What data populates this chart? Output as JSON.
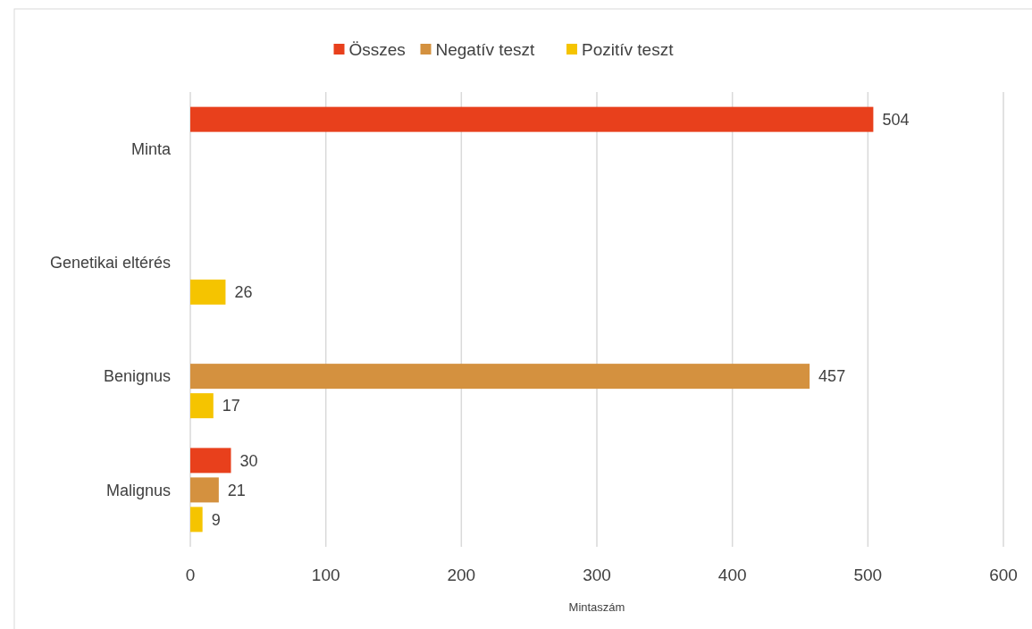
{
  "chart_data": {
    "type": "bar",
    "orientation": "horizontal",
    "xlabel": "Mintaszám",
    "categories": [
      "Minta",
      "Genetikai eltérés",
      "Benignus",
      "Malignus"
    ],
    "series": [
      {
        "name": "Összes",
        "color": "#e8401c",
        "values": [
          504,
          null,
          null,
          30
        ]
      },
      {
        "name": "Negatív teszt",
        "color": "#d4913f",
        "values": [
          null,
          null,
          457,
          21
        ]
      },
      {
        "name": "Pozitív teszt",
        "color": "#f5c400",
        "values": [
          null,
          26,
          17,
          9
        ]
      }
    ],
    "xlim": [
      0,
      600
    ],
    "xticks": [
      0,
      100,
      200,
      300,
      400,
      500,
      600
    ],
    "grid": "x",
    "legend": "top",
    "data_labels": true
  }
}
